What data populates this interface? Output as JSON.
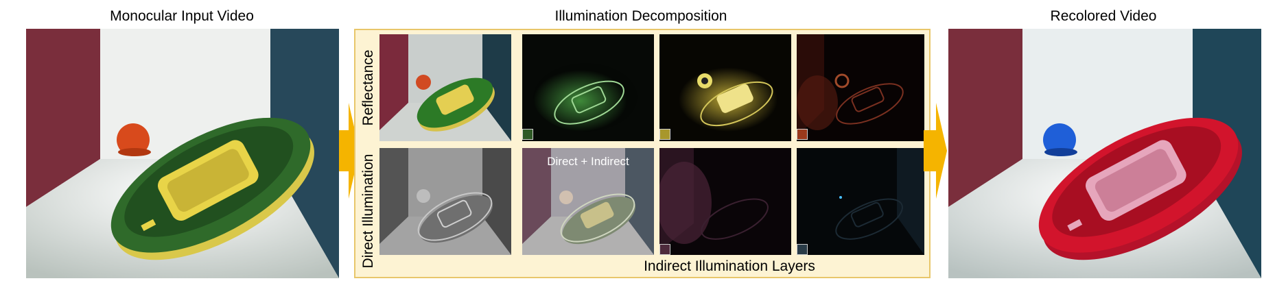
{
  "titles": {
    "input": "Monocular Input Video",
    "decomposition": "Illumination Decomposition",
    "output": "Recolored Video"
  },
  "labels": {
    "reflectance": "Reflectance",
    "direct_illumination": "Direct Illumination",
    "direct_plus_indirect": "Direct + Indirect",
    "indirect_layers": "Indirect Illumination Layers"
  },
  "colors": {
    "frame": "#e8c66a",
    "frame_fill": "#fdf3d3",
    "arrow": "#f5b400",
    "swatch_green": "#2f5a26",
    "swatch_yellow": "#a8972c",
    "swatch_orange": "#9a3a1c",
    "swatch_magenta": "#4e2a3c",
    "swatch_blue": "#2a3c48"
  }
}
